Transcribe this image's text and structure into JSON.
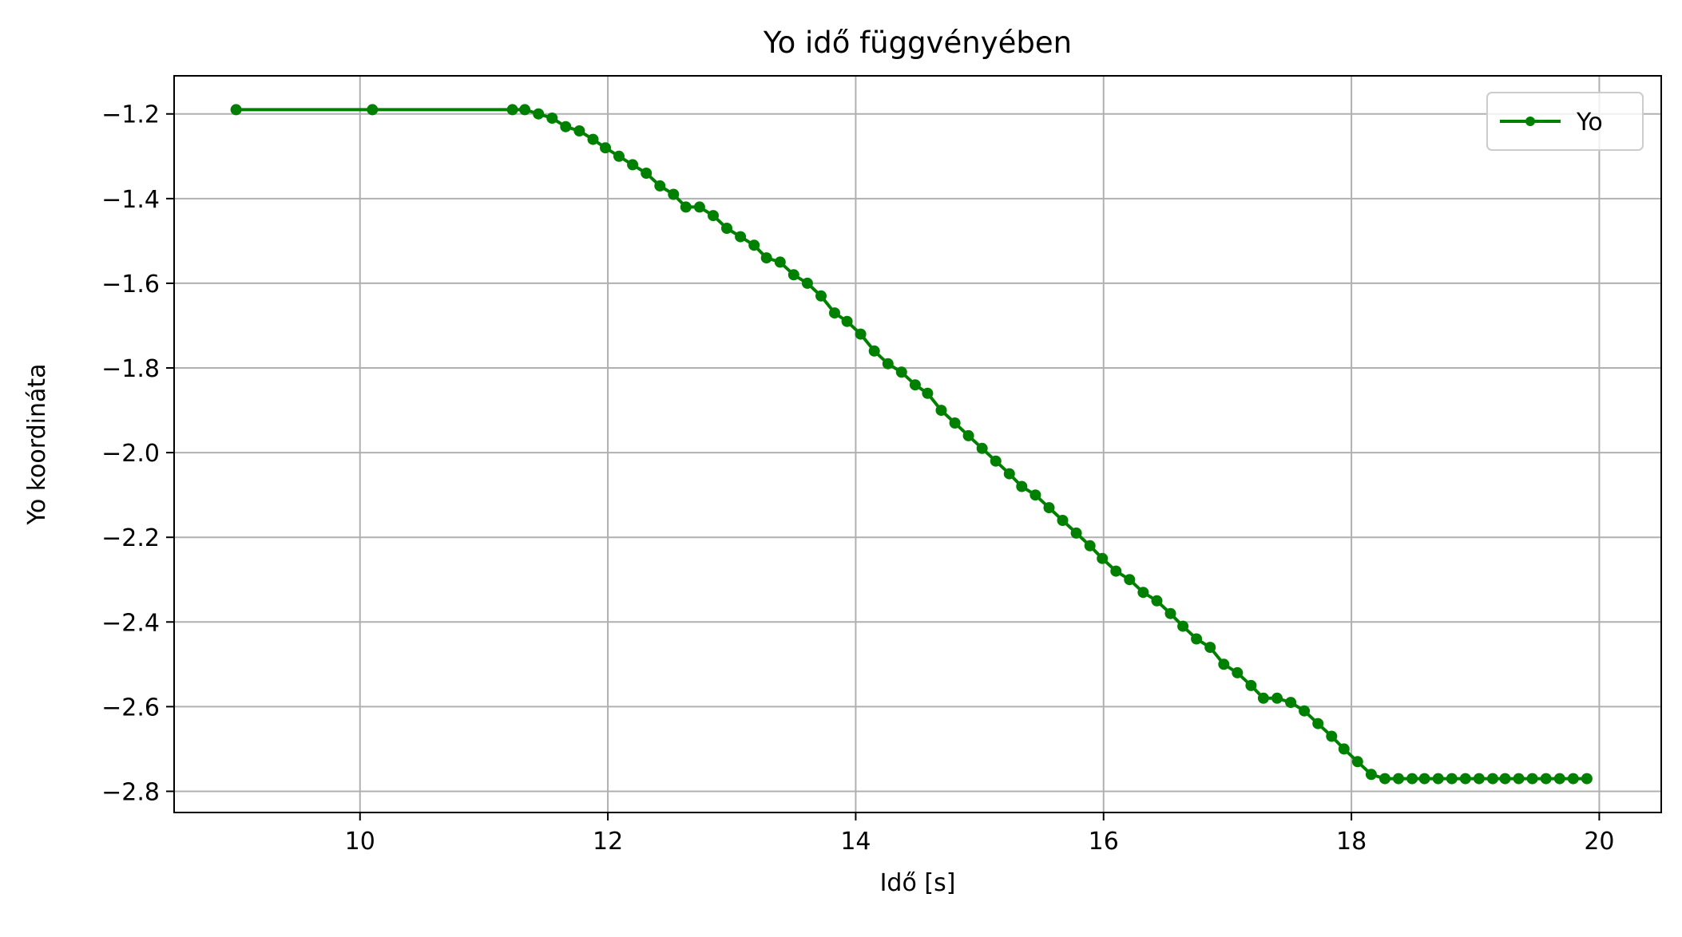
{
  "chart_data": {
    "type": "line",
    "title": "Yo idő függvényében",
    "xlabel": "Idő [s]",
    "ylabel": "Yo koordináta",
    "xlim": [
      8.5,
      20.5
    ],
    "ylim": [
      -2.85,
      -1.11
    ],
    "xticks": [
      10,
      12,
      14,
      16,
      18,
      20
    ],
    "yticks": [
      -1.2,
      -1.4,
      -1.6,
      -1.8,
      -2.0,
      -2.2,
      -2.4,
      -2.6,
      -2.8
    ],
    "grid": true,
    "legend_position": "top-right",
    "series": [
      {
        "name": "Yo",
        "color": "#008000",
        "marker": "circle",
        "x": [
          9.0,
          10.1,
          11.23,
          11.33,
          11.44,
          11.55,
          11.66,
          11.77,
          11.88,
          11.98,
          12.09,
          12.2,
          12.31,
          12.42,
          12.53,
          12.63,
          12.74,
          12.85,
          12.96,
          13.07,
          13.18,
          13.28,
          13.39,
          13.5,
          13.61,
          13.72,
          13.83,
          13.93,
          14.04,
          14.15,
          14.26,
          14.37,
          14.48,
          14.58,
          14.69,
          14.8,
          14.91,
          15.02,
          15.13,
          15.24,
          15.34,
          15.45,
          15.56,
          15.67,
          15.78,
          15.89,
          15.99,
          16.1,
          16.21,
          16.32,
          16.43,
          16.54,
          16.64,
          16.75,
          16.86,
          16.97,
          17.08,
          17.19,
          17.29,
          17.4,
          17.51,
          17.62,
          17.73,
          17.84,
          17.94,
          18.05,
          18.16,
          18.27,
          18.38,
          18.49,
          18.59,
          18.7,
          18.81,
          18.92,
          19.03,
          19.14,
          19.24,
          19.35,
          19.46,
          19.57,
          19.68,
          19.79,
          19.9
        ],
        "y": [
          -1.19,
          -1.19,
          -1.19,
          -1.19,
          -1.2,
          -1.21,
          -1.23,
          -1.24,
          -1.26,
          -1.28,
          -1.3,
          -1.32,
          -1.34,
          -1.37,
          -1.39,
          -1.42,
          -1.42,
          -1.44,
          -1.47,
          -1.49,
          -1.51,
          -1.54,
          -1.55,
          -1.58,
          -1.6,
          -1.63,
          -1.67,
          -1.69,
          -1.72,
          -1.76,
          -1.79,
          -1.81,
          -1.84,
          -1.86,
          -1.9,
          -1.93,
          -1.96,
          -1.99,
          -2.02,
          -2.05,
          -2.08,
          -2.1,
          -2.13,
          -2.16,
          -2.19,
          -2.22,
          -2.25,
          -2.28,
          -2.3,
          -2.33,
          -2.35,
          -2.38,
          -2.41,
          -2.44,
          -2.46,
          -2.5,
          -2.52,
          -2.55,
          -2.58,
          -2.58,
          -2.59,
          -2.61,
          -2.64,
          -2.67,
          -2.7,
          -2.73,
          -2.76,
          -2.77,
          -2.77,
          -2.77,
          -2.77,
          -2.77,
          -2.77,
          -2.77,
          -2.77,
          -2.77,
          -2.77,
          -2.77,
          -2.77,
          -2.77,
          -2.77,
          -2.77,
          -2.77
        ]
      }
    ]
  }
}
